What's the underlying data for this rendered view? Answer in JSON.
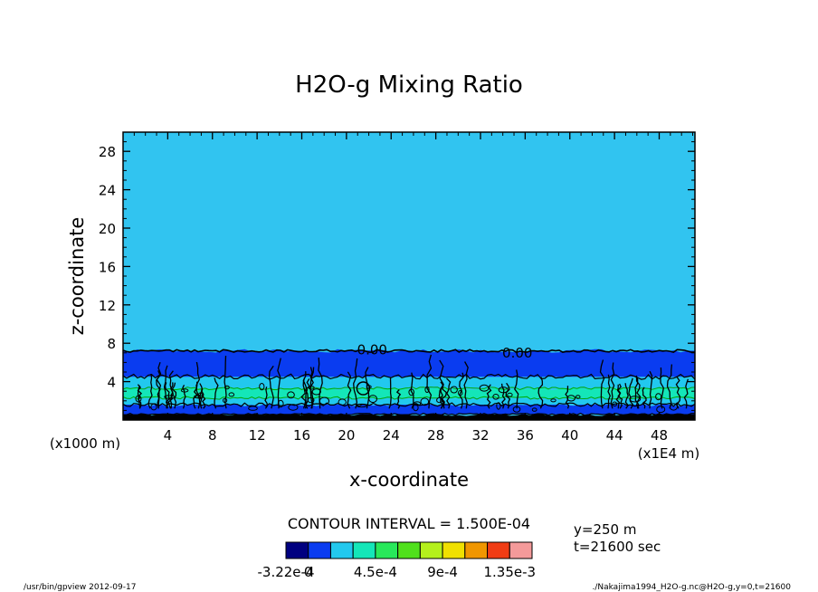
{
  "chart_data": {
    "type": "heatmap",
    "title": "H2O-g Mixing Ratio",
    "xlabel": "x-coordinate",
    "ylabel": "z-coordinate",
    "x_units_left": "(x1000 m)",
    "x_units_right": "(x1E4 m)",
    "xlim": [
      0,
      51.2
    ],
    "ylim": [
      0,
      30
    ],
    "x_ticks": [
      "4",
      "8",
      "12",
      "16",
      "20",
      "24",
      "28",
      "32",
      "36",
      "40",
      "44",
      "48"
    ],
    "x_tick_values": [
      4,
      8,
      12,
      16,
      20,
      24,
      28,
      32,
      36,
      40,
      44,
      48
    ],
    "y_ticks": [
      "4",
      "8",
      "12",
      "16",
      "20",
      "24",
      "28"
    ],
    "y_tick_values": [
      4,
      8,
      12,
      16,
      20,
      24,
      28
    ],
    "contour_labels": [
      {
        "text": "0.00",
        "x": 22.3,
        "z": 7.3
      },
      {
        "text": "0.00",
        "x": 35.3,
        "z": 7.0
      }
    ],
    "fields": {
      "upper_zero_layer_top_z": 7.2,
      "band_z": [
        {
          "z0": 0.0,
          "z1": 0.6,
          "color": "#000000"
        },
        {
          "z0": 0.6,
          "z1": 1.6,
          "color": "#0a3cf0"
        },
        {
          "z0": 1.6,
          "z1": 2.3,
          "color": "#22c8ee"
        },
        {
          "z0": 2.3,
          "z1": 3.3,
          "color": "#14e6b8"
        },
        {
          "z0": 3.3,
          "z1": 4.5,
          "color": "#22c8ee"
        },
        {
          "z0": 4.5,
          "z1": 7.2,
          "color": "#0a3cf0"
        },
        {
          "z0": 7.2,
          "z1": 30.0,
          "color": "#31c4f0"
        }
      ]
    },
    "contour_interval": "CONTOUR INTERVAL = 1.500E-04",
    "colorbar": {
      "colors": [
        "#000080",
        "#0a3cf0",
        "#22c8ee",
        "#14e6b8",
        "#28e85a",
        "#50e01c",
        "#b4f01c",
        "#f0e000",
        "#f09600",
        "#f03c14",
        "#f49a9a"
      ],
      "labels": [
        "-3.22e-4",
        "0",
        "4.5e-4",
        "9e-4",
        "1.35e-3"
      ]
    },
    "info": {
      "y": "y=250 m",
      "t": "t=21600 sec"
    }
  },
  "footer": {
    "left": "/usr/bin/gpview  2012-09-17",
    "right": "./Nakajima1994_H2O-g.nc@H2O-g,y=0,t=21600"
  }
}
